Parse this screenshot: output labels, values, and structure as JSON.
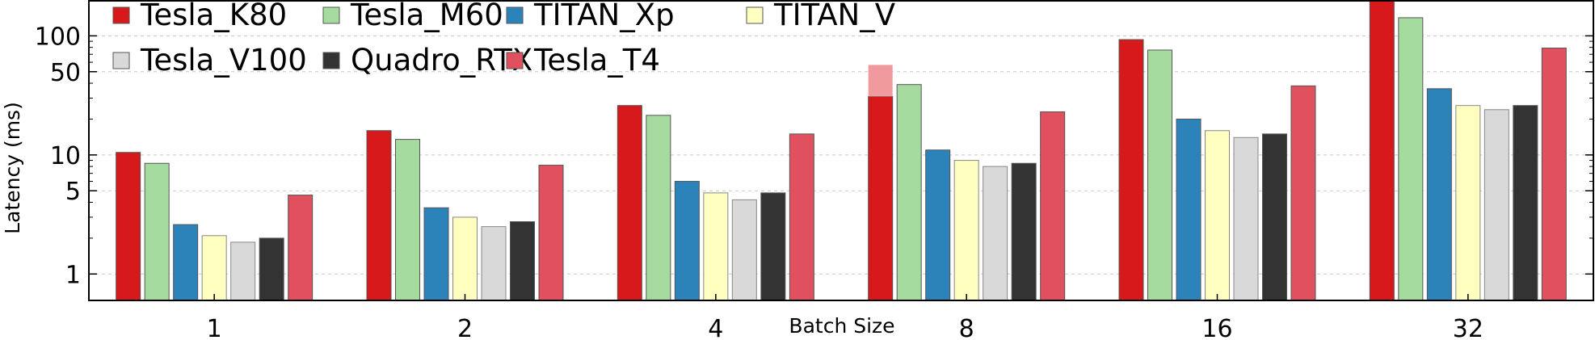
{
  "chart_data": {
    "type": "bar",
    "scale": "log",
    "title": "",
    "xlabel": "Batch Size",
    "ylabel": "Latency (ms)",
    "ylim": [
      0.6,
      200
    ],
    "yticks": [
      {
        "value": 1,
        "label": "1"
      },
      {
        "value": 5,
        "label": "5"
      },
      {
        "value": 10,
        "label": "10"
      },
      {
        "value": 50,
        "label": "50"
      },
      {
        "value": 100,
        "label": "100"
      }
    ],
    "grid": true,
    "legend_position": "top-left",
    "categories": [
      "1",
      "2",
      "4",
      "8",
      "16",
      "32"
    ],
    "series": [
      {
        "name": "Tesla_K80",
        "color": "#d7191c",
        "values": [
          10.5,
          16,
          26,
          31,
          93,
          200
        ]
      },
      {
        "name": "Tesla_M60",
        "color": "#a6dba0",
        "values": [
          8.5,
          13.5,
          21.5,
          39,
          76,
          142
        ]
      },
      {
        "name": "TITAN_Xp",
        "color": "#2b83ba",
        "values": [
          2.6,
          3.6,
          6.0,
          11,
          20,
          36
        ]
      },
      {
        "name": "TITAN_V",
        "color": "#ffffbf",
        "values": [
          2.1,
          3.0,
          4.8,
          9.0,
          16,
          26
        ]
      },
      {
        "name": "Tesla_V100",
        "color": "#d9d9d9",
        "values": [
          1.85,
          2.5,
          4.2,
          8.0,
          14,
          24
        ]
      },
      {
        "name": "Quadro_RTX",
        "color": "#333333",
        "values": [
          2.0,
          2.75,
          4.8,
          8.5,
          15,
          26
        ]
      },
      {
        "name": "Tesla_T4",
        "color": "#e0505f",
        "values": [
          4.6,
          8.2,
          15,
          23,
          38,
          79
        ]
      }
    ],
    "annotations": [
      {
        "category": "8",
        "note": "shaded extension above Tesla_K80 bar",
        "color": "#f09a9e",
        "from": 31,
        "to": 57
      }
    ]
  }
}
